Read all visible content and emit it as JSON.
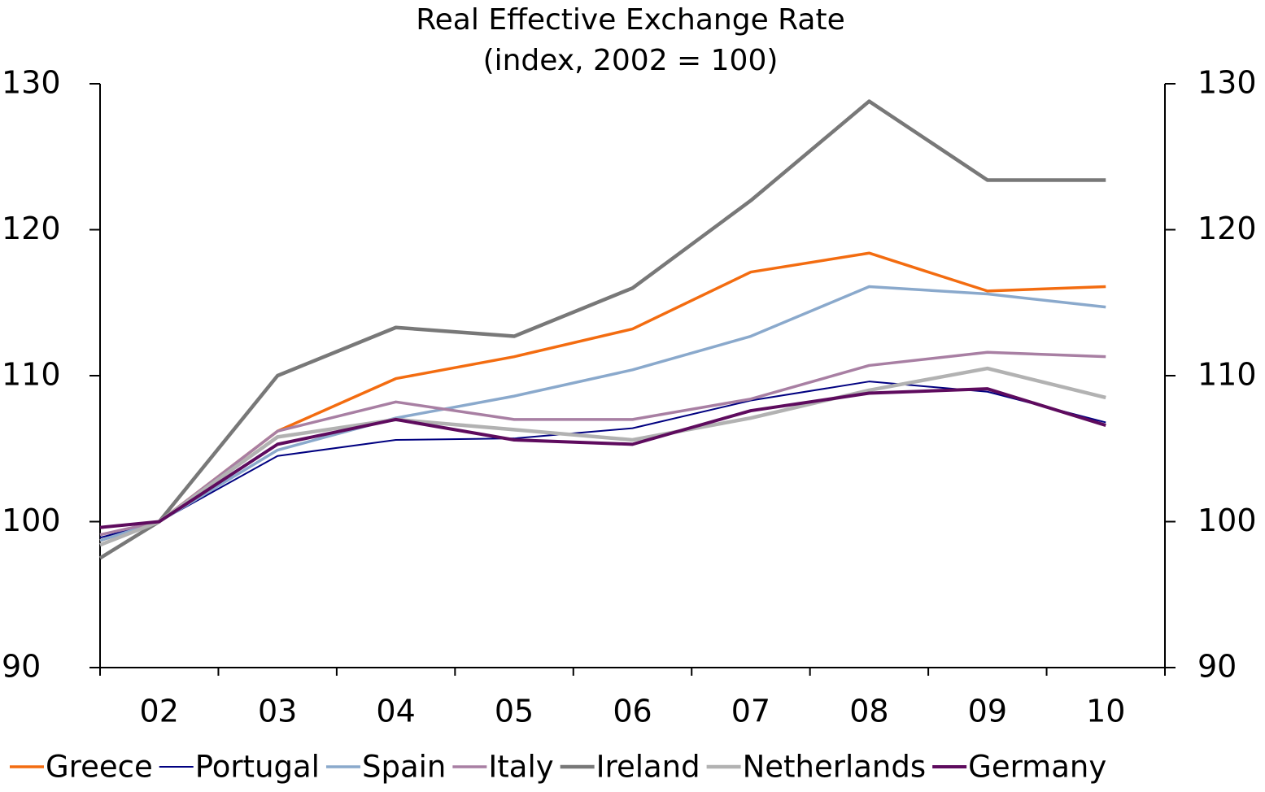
{
  "chart_data": {
    "type": "line",
    "title": "Real Effective Exchange Rate",
    "subtitle": "(index, 2002 = 100)",
    "x": [
      2001.5,
      2002,
      2003,
      2004,
      2005,
      2006,
      2007,
      2008,
      2009,
      2010
    ],
    "xlim": [
      2001.5,
      2010.5
    ],
    "xticks": [
      {
        "value": 2002,
        "label": "02"
      },
      {
        "value": 2003,
        "label": "03"
      },
      {
        "value": 2004,
        "label": "04"
      },
      {
        "value": 2005,
        "label": "05"
      },
      {
        "value": 2006,
        "label": "06"
      },
      {
        "value": 2007,
        "label": "07"
      },
      {
        "value": 2008,
        "label": "08"
      },
      {
        "value": 2009,
        "label": "09"
      },
      {
        "value": 2010,
        "label": "10"
      }
    ],
    "x_tick_marks": [
      2001.5,
      2002.5,
      2003.5,
      2004.5,
      2005.5,
      2006.5,
      2007.5,
      2008.5,
      2009.5,
      2010.5
    ],
    "ylim": [
      90,
      130
    ],
    "yticks": [
      90,
      100,
      110,
      120,
      130
    ],
    "y2lim": [
      90,
      130
    ],
    "y2ticks": [
      90,
      100,
      110,
      120,
      130
    ],
    "grid": false,
    "legend": "bottom",
    "series": [
      {
        "name": "Greece",
        "color": "#f36c10",
        "width": 3.5,
        "values": [
          98.7,
          100,
          106.2,
          109.8,
          111.3,
          113.2,
          117.1,
          118.4,
          115.8,
          116.1
        ]
      },
      {
        "name": "Portugal",
        "color": "#000080",
        "width": 2,
        "values": [
          98.9,
          100,
          104.5,
          105.6,
          105.7,
          106.4,
          108.3,
          109.6,
          108.9,
          106.8
        ]
      },
      {
        "name": "Spain",
        "color": "#8aa9cc",
        "width": 3.5,
        "values": [
          98.7,
          100,
          104.9,
          107.1,
          108.6,
          110.4,
          112.7,
          116.1,
          115.6,
          114.7
        ]
      },
      {
        "name": "Italy",
        "color": "#a87fa3",
        "width": 3.5,
        "values": [
          99.1,
          100,
          106.2,
          108.2,
          107.0,
          107.0,
          108.4,
          110.7,
          111.6,
          111.3
        ]
      },
      {
        "name": "Ireland",
        "color": "#787878",
        "width": 4.5,
        "values": [
          97.5,
          100,
          110.0,
          113.3,
          112.7,
          116.0,
          122.0,
          128.8,
          123.4,
          123.4
        ]
      },
      {
        "name": "Netherlands",
        "color": "#b2b2b2",
        "width": 4.5,
        "values": [
          98.4,
          100,
          105.8,
          107.0,
          106.3,
          105.6,
          107.1,
          109.0,
          110.5,
          108.5
        ]
      },
      {
        "name": "Germany",
        "color": "#5e0b5e",
        "width": 4,
        "values": [
          99.6,
          100,
          105.3,
          107.0,
          105.6,
          105.3,
          107.6,
          108.8,
          109.1,
          106.6
        ]
      }
    ]
  }
}
